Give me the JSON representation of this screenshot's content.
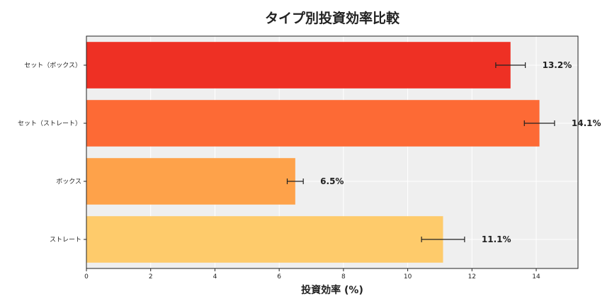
{
  "chart_data": {
    "type": "bar",
    "orientation": "horizontal",
    "title": "タイプ別投資効率比較",
    "xlabel": "投資効率 (%)",
    "ylabel": "",
    "xlim": [
      0,
      15.3
    ],
    "xticks": [
      0,
      2,
      4,
      6,
      8,
      10,
      12,
      14
    ],
    "grid": true,
    "categories": [
      "セット（ボックス）",
      "セット（ストレート）",
      "ボックス",
      "ストレート"
    ],
    "values": [
      13.2,
      14.1,
      6.5,
      11.1
    ],
    "errors": [
      0.46,
      0.47,
      0.25,
      0.67
    ],
    "value_labels": [
      "13.2%",
      "14.1%",
      "6.5%",
      "11.1%"
    ],
    "colors": [
      "#ee3024",
      "#fd6a35",
      "#fea24a",
      "#fecb6b"
    ],
    "plot_background": "#efefef"
  }
}
